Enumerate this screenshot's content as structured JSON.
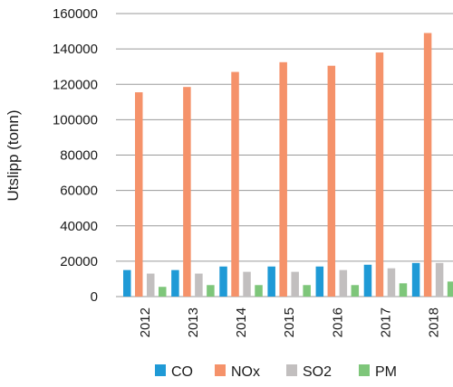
{
  "chart_data": {
    "type": "bar",
    "ylabel": "Utslipp (tonn)",
    "xlabel": "",
    "categories": [
      "2012",
      "2013",
      "2014",
      "2015",
      "2016",
      "2017",
      "2018"
    ],
    "ylim": [
      0,
      160000
    ],
    "yticks": [
      0,
      20000,
      40000,
      60000,
      80000,
      100000,
      120000,
      140000,
      160000
    ],
    "grid": true,
    "legend_position": "bottom",
    "series": [
      {
        "name": "CO",
        "color": "#1f9ad6",
        "values": [
          15000,
          15000,
          17000,
          17000,
          17000,
          18000,
          19000
        ]
      },
      {
        "name": "NOx",
        "color": "#f5926a",
        "values": [
          115500,
          118500,
          127000,
          132500,
          130500,
          138000,
          149000
        ]
      },
      {
        "name": "SO2",
        "color": "#c2bfbf",
        "values": [
          13000,
          13000,
          14000,
          14000,
          15000,
          16000,
          19000
        ]
      },
      {
        "name": "PM",
        "color": "#7ec67a",
        "values": [
          5500,
          6500,
          6500,
          6500,
          6500,
          7500,
          8500
        ]
      }
    ]
  }
}
